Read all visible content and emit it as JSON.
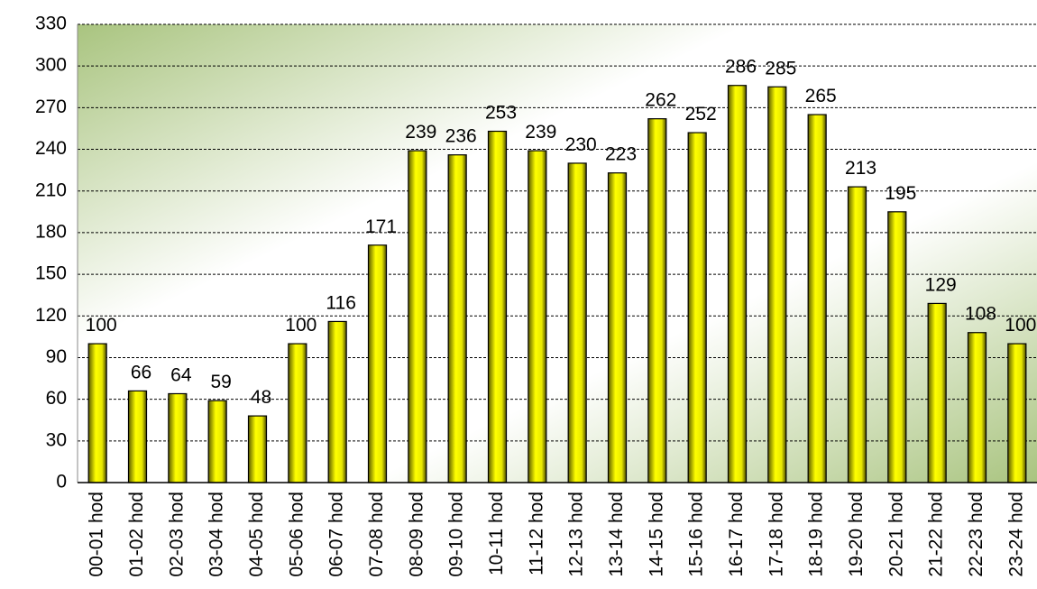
{
  "chart_data": {
    "type": "bar",
    "categories": [
      "00-01 hod",
      "01-02 hod",
      "02-03 hod",
      "03-04 hod",
      "04-05 hod",
      "05-06 hod",
      "06-07 hod",
      "07-08 hod",
      "08-09 hod",
      "09-10 hod",
      "10-11 hod",
      "11-12 hod",
      "12-13 hod",
      "13-14 hod",
      "14-15 hod",
      "15-16 hod",
      "16-17 hod",
      "17-18 hod",
      "18-19 hod",
      "19-20 hod",
      "20-21 hod",
      "21-22 hod",
      "22-23 hod",
      "23-24 hod"
    ],
    "values": [
      100,
      66,
      64,
      59,
      48,
      100,
      116,
      171,
      239,
      236,
      253,
      239,
      230,
      223,
      262,
      252,
      286,
      285,
      265,
      213,
      195,
      129,
      108,
      100
    ],
    "color": "#ffff00",
    "ylim": [
      0,
      330
    ],
    "yticks": [
      0,
      30,
      60,
      90,
      120,
      150,
      180,
      210,
      240,
      270,
      300,
      330
    ],
    "grid": true
  }
}
